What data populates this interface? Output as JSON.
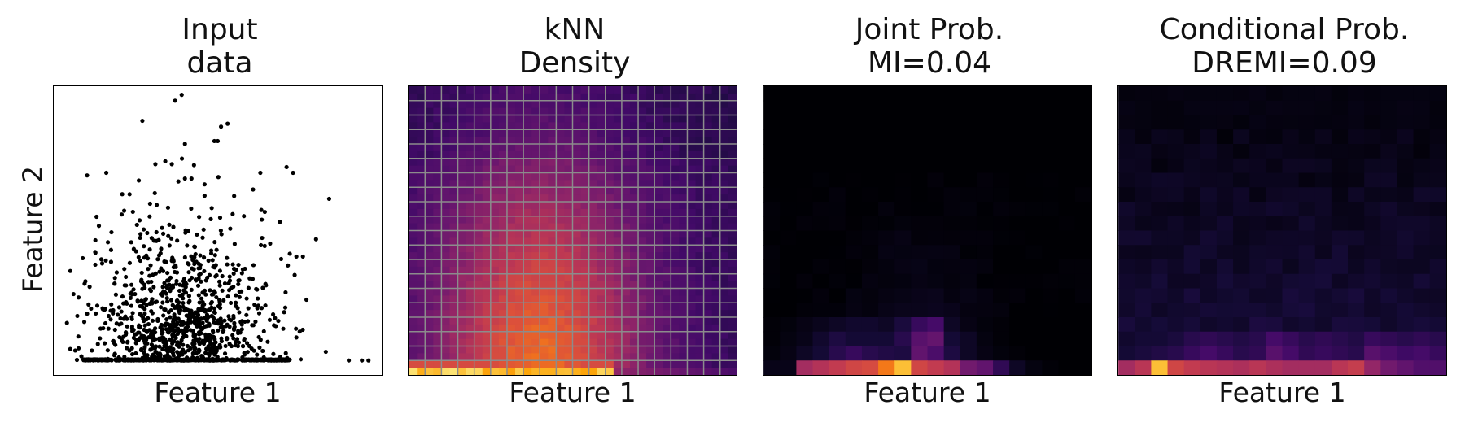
{
  "figure": {
    "ylabel": "Feature 2",
    "panels": [
      {
        "title_line1": "Input",
        "title_line2": "data",
        "xlabel": "Feature 1"
      },
      {
        "title_line1": "kNN",
        "title_line2": "Density",
        "xlabel": "Feature 1"
      },
      {
        "title_line1": "Joint Prob.",
        "title_line2": "MI=0.04",
        "xlabel": "Feature 1"
      },
      {
        "title_line1": "Conditional Prob.",
        "title_line2": "DREMI=0.09",
        "xlabel": "Feature 1"
      }
    ]
  },
  "chart_data": [
    {
      "type": "scatter",
      "title": "Input\ndata",
      "xlabel": "Feature 1",
      "ylabel": "Feature 2",
      "ticks": "none",
      "marker_color": "#000000",
      "points_sampled": [
        [
          0.39,
          0.97
        ],
        [
          0.37,
          0.95
        ],
        [
          0.27,
          0.88
        ],
        [
          0.53,
          0.87
        ],
        [
          0.51,
          0.86
        ],
        [
          0.49,
          0.81
        ],
        [
          0.5,
          0.81
        ],
        [
          0.4,
          0.8
        ],
        [
          0.31,
          0.73
        ],
        [
          0.34,
          0.74
        ],
        [
          0.36,
          0.73
        ],
        [
          0.71,
          0.72
        ],
        [
          0.73,
          0.7
        ],
        [
          0.16,
          0.7
        ],
        [
          0.84,
          0.61
        ],
        [
          0.63,
          0.7
        ],
        [
          0.4,
          0.68
        ],
        [
          0.42,
          0.68
        ],
        [
          0.38,
          0.67
        ],
        [
          0.46,
          0.66
        ],
        [
          0.55,
          0.62
        ],
        [
          0.58,
          0.55
        ],
        [
          0.69,
          0.53
        ],
        [
          0.8,
          0.47
        ],
        [
          0.76,
          0.41
        ],
        [
          0.74,
          0.41
        ],
        [
          0.72,
          0.42
        ],
        [
          0.05,
          0.36
        ],
        [
          0.06,
          0.28
        ],
        [
          0.04,
          0.18
        ],
        [
          0.05,
          0.09
        ],
        [
          0.83,
          0.08
        ],
        [
          0.9,
          0.05
        ],
        [
          0.94,
          0.05
        ],
        [
          0.96,
          0.05
        ],
        [
          0.75,
          0.15
        ],
        [
          0.74,
          0.13
        ],
        [
          0.7,
          0.16
        ]
      ],
      "dense_region": {
        "x_range": [
          0.08,
          0.7
        ],
        "y_range": [
          0.05,
          0.7
        ],
        "n_approx": 900
      },
      "baseline_cluster": {
        "y": 0.05,
        "x_range": [
          0.09,
          0.72
        ]
      }
    },
    {
      "type": "heatmap",
      "title": "kNN\nDensity",
      "xlabel": "Feature 1",
      "grid": {
        "rows": 20,
        "cols": 20,
        "visible": true,
        "color": "#8c8c8c"
      },
      "colormap": "inferno",
      "description_values": "smooth density, bright band along bottom row, peak near columns 2-11"
    },
    {
      "type": "heatmap",
      "title": "Joint Prob.\nMI=0.04",
      "xlabel": "Feature 1",
      "rows": 20,
      "cols": 20,
      "colormap": "inferno",
      "bottom_row": [
        0.05,
        0.05,
        0.55,
        0.6,
        0.65,
        0.7,
        0.72,
        0.85,
        0.95,
        0.7,
        0.65,
        0.6,
        0.4,
        0.35,
        0.2,
        0.08,
        0.03,
        0.01,
        0.0,
        0.0
      ],
      "row_18": [
        0.02,
        0.04,
        0.08,
        0.12,
        0.18,
        0.22,
        0.18,
        0.16,
        0.15,
        0.35,
        0.28,
        0.15,
        0.08,
        0.04,
        0.02,
        0.01,
        0.0,
        0.0,
        0.0,
        0.0
      ],
      "row_17": [
        0.01,
        0.03,
        0.05,
        0.1,
        0.15,
        0.12,
        0.12,
        0.12,
        0.18,
        0.32,
        0.36,
        0.12,
        0.08,
        0.03,
        0.01,
        0.0,
        0.0,
        0.0,
        0.0,
        0.0
      ],
      "row_16": [
        0.01,
        0.02,
        0.04,
        0.06,
        0.08,
        0.1,
        0.1,
        0.08,
        0.14,
        0.22,
        0.26,
        0.08,
        0.04,
        0.02,
        0.01,
        0.0,
        0.0,
        0.0,
        0.0,
        0.0
      ]
    },
    {
      "type": "heatmap",
      "title": "Conditional Prob.\nDREMI=0.09",
      "xlabel": "Feature 1",
      "rows": 20,
      "cols": 20,
      "colormap": "inferno",
      "bottom_row": [
        0.55,
        0.62,
        0.95,
        0.7,
        0.65,
        0.62,
        0.6,
        0.58,
        0.62,
        0.58,
        0.55,
        0.55,
        0.55,
        0.62,
        0.66,
        0.5,
        0.4,
        0.35,
        0.3,
        0.3
      ],
      "row_18": [
        0.12,
        0.14,
        0.16,
        0.18,
        0.22,
        0.26,
        0.22,
        0.18,
        0.2,
        0.32,
        0.26,
        0.2,
        0.22,
        0.2,
        0.18,
        0.32,
        0.28,
        0.24,
        0.26,
        0.22
      ],
      "row_17": [
        0.1,
        0.12,
        0.12,
        0.14,
        0.18,
        0.2,
        0.18,
        0.16,
        0.18,
        0.26,
        0.22,
        0.18,
        0.2,
        0.18,
        0.16,
        0.22,
        0.2,
        0.18,
        0.2,
        0.18
      ]
    }
  ]
}
